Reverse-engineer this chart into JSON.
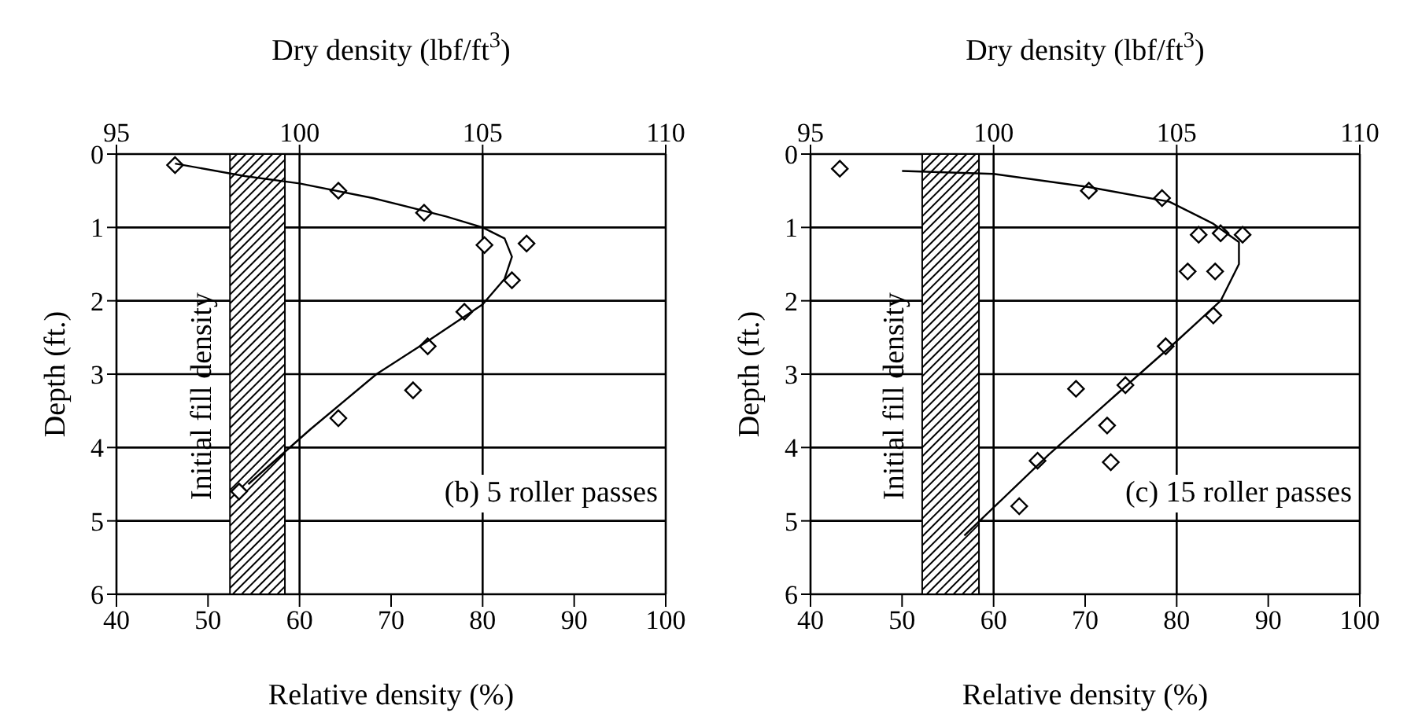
{
  "chart_data": [
    {
      "type": "scatter",
      "x2label": "Dry density (lbf/ft$^{3}$)",
      "xlabel": "Relative density (%)",
      "ylabel": "Depth (ft.)",
      "annotations": [
        "(b) 5 roller passes"
      ],
      "xlim": [
        40,
        100
      ],
      "xticks": [
        40,
        50,
        60,
        70,
        80,
        90,
        100
      ],
      "x2lim": [
        95,
        110
      ],
      "x2ticks": [
        95,
        100,
        105,
        110
      ],
      "ylim": [
        6,
        0
      ],
      "yticks": [
        0,
        1,
        2,
        3,
        4,
        5,
        6
      ],
      "grid": true,
      "legend": false,
      "bands": [
        {
          "axis": "x2",
          "from": 98.1,
          "to": 99.6,
          "label": "Initial fill density",
          "color": "#000000"
        }
      ],
      "series": [
        {
          "type": "scatter",
          "axis": "x2",
          "marker": "diamond",
          "color": "#000000",
          "x": [
            96.6,
            101.06,
            103.4,
            105.05,
            106.2,
            105.8,
            104.5,
            103.5,
            103.1,
            101.06,
            98.35
          ],
          "values": [
            0.15,
            0.5,
            0.8,
            1.24,
            1.22,
            1.72,
            2.15,
            2.62,
            3.22,
            3.6,
            4.6
          ]
        },
        {
          "type": "line",
          "axis": "x2",
          "marker": "none",
          "color": "#000000",
          "x": [
            96.6,
            98.5,
            100,
            102,
            104,
            105,
            105.6,
            105.8,
            105.6,
            105,
            103.5,
            102.1,
            100.3,
            98.6
          ],
          "values": [
            0.13,
            0.3,
            0.4,
            0.6,
            0.85,
            1.0,
            1.15,
            1.4,
            1.7,
            2.05,
            2.55,
            3.0,
            3.75,
            4.5
          ]
        }
      ]
    },
    {
      "type": "scatter",
      "x2label": "Dry density (lbf/ft$^{3}$)",
      "xlabel": "Relative density (%)",
      "ylabel": "Depth (ft.)",
      "annotations": [
        "(c) 15 roller passes"
      ],
      "xlim": [
        40,
        100
      ],
      "xticks": [
        40,
        50,
        60,
        70,
        80,
        90,
        100
      ],
      "x2lim": [
        95,
        110
      ],
      "x2ticks": [
        95,
        100,
        105,
        110
      ],
      "ylim": [
        6,
        0
      ],
      "yticks": [
        0,
        1,
        2,
        3,
        4,
        5,
        6
      ],
      "grid": true,
      "legend": false,
      "bands": [
        {
          "axis": "x2",
          "from": 98.05,
          "to": 99.6,
          "label": "Initial fill density",
          "color": "#000000"
        }
      ],
      "series": [
        {
          "type": "scatter",
          "axis": "x2",
          "marker": "diamond",
          "color": "#000000",
          "x": [
            95.8,
            102.6,
            104.6,
            105.6,
            106.2,
            106.8,
            105.3,
            106.05,
            106.0,
            104.7,
            102.25,
            103.6,
            103.1,
            103.2,
            101.2,
            100.7
          ],
          "values": [
            0.2,
            0.5,
            0.6,
            1.1,
            1.08,
            1.1,
            1.6,
            1.6,
            2.2,
            2.62,
            3.2,
            3.15,
            3.7,
            4.2,
            4.18,
            4.8
          ]
        },
        {
          "type": "line",
          "axis": "x2",
          "marker": "none",
          "color": "#000000",
          "x": [
            97.5,
            100,
            102.6,
            104.8,
            106,
            106.7,
            106.7,
            106.2,
            105,
            103.3,
            101.5,
            99.2
          ],
          "values": [
            0.23,
            0.27,
            0.45,
            0.65,
            0.95,
            1.2,
            1.5,
            2.0,
            2.55,
            3.3,
            4.1,
            5.2
          ]
        }
      ]
    }
  ]
}
